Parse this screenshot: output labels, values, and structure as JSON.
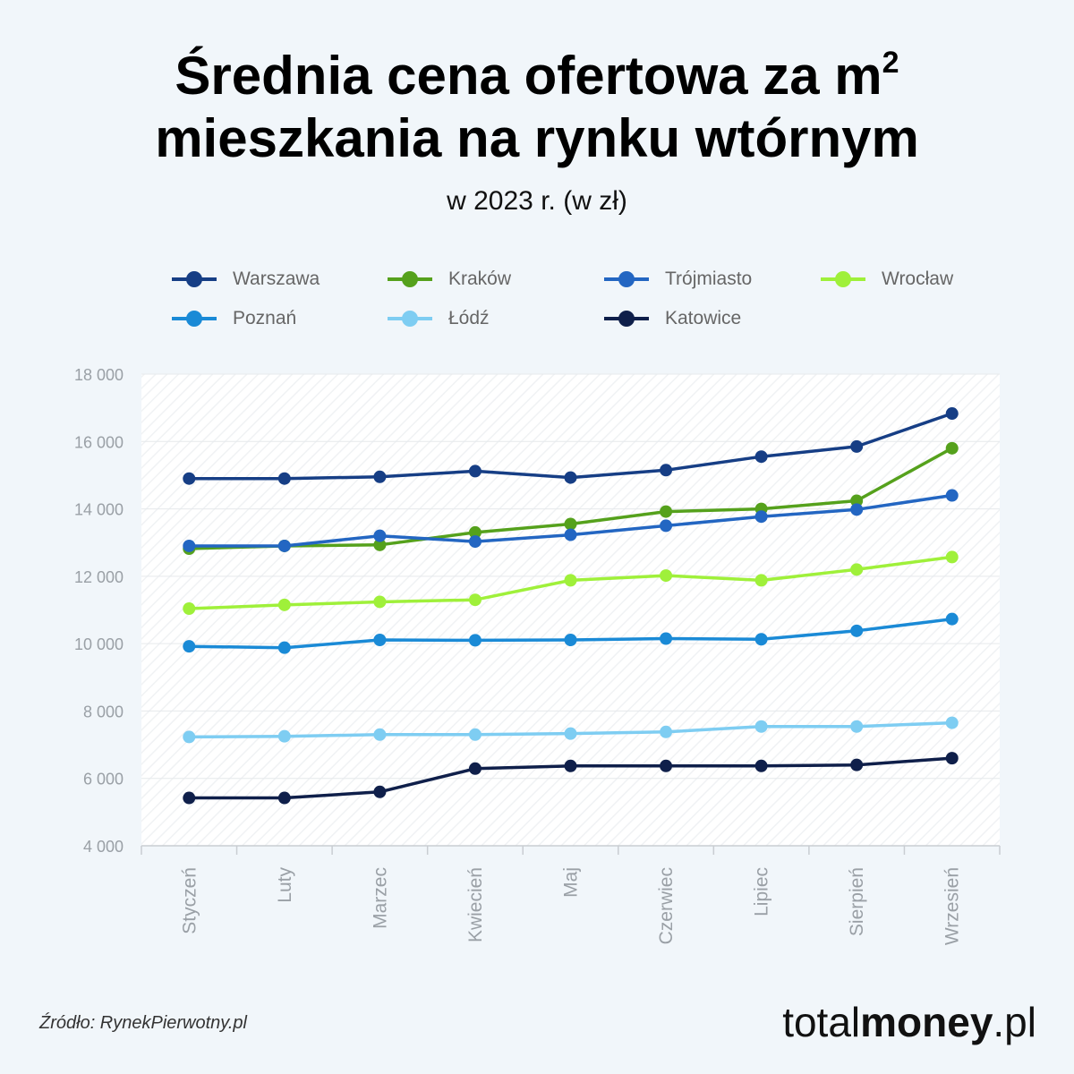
{
  "header": {
    "title_line1": "Średnia cena ofertowa za m",
    "title_sup": "2",
    "title_line2": "mieszkania na rynku wtórnym",
    "subtitle": "w 2023 r. (w zł)"
  },
  "chart_data": {
    "type": "line",
    "categories": [
      "Styczeń",
      "Luty",
      "Marzec",
      "Kwiecień",
      "Maj",
      "Czerwiec",
      "Lipiec",
      "Sierpień",
      "Wrzesień"
    ],
    "ylim": [
      4000,
      18000
    ],
    "yticks": [
      4000,
      6000,
      8000,
      10000,
      12000,
      14000,
      16000,
      18000
    ],
    "ytick_labels": [
      "4 000",
      "6 000",
      "8 000",
      "10 000",
      "12 000",
      "14 000",
      "16 000",
      "18 000"
    ],
    "series": [
      {
        "name": "Warszawa",
        "color": "#163e85",
        "values": [
          14900,
          14900,
          14950,
          15120,
          14930,
          15150,
          15550,
          15850,
          16830
        ]
      },
      {
        "name": "Kraków",
        "color": "#55a11c",
        "values": [
          12820,
          12900,
          12930,
          13300,
          13550,
          13920,
          14000,
          14240,
          15800
        ]
      },
      {
        "name": "Trójmiasto",
        "color": "#2366c2",
        "values": [
          12900,
          12900,
          13200,
          13030,
          13230,
          13500,
          13770,
          13980,
          14400
        ]
      },
      {
        "name": "Wrocław",
        "color": "#9ff03a",
        "values": [
          11040,
          11150,
          11240,
          11300,
          11880,
          12020,
          11880,
          12200,
          12570
        ]
      },
      {
        "name": "Poznań",
        "color": "#1a8ad6",
        "values": [
          9920,
          9880,
          10110,
          10100,
          10110,
          10150,
          10130,
          10380,
          10730
        ]
      },
      {
        "name": "Łódź",
        "color": "#7ecdf2",
        "values": [
          7230,
          7250,
          7300,
          7300,
          7330,
          7380,
          7540,
          7540,
          7650
        ]
      },
      {
        "name": "Katowice",
        "color": "#0f1f4a",
        "values": [
          5420,
          5420,
          5600,
          6290,
          6370,
          6370,
          6370,
          6400,
          6600
        ]
      }
    ]
  },
  "footer": {
    "source": "Źródło: RynekPierwotny.pl",
    "brand_light": "total",
    "brand_bold": "money",
    "brand_suffix": ".pl"
  }
}
